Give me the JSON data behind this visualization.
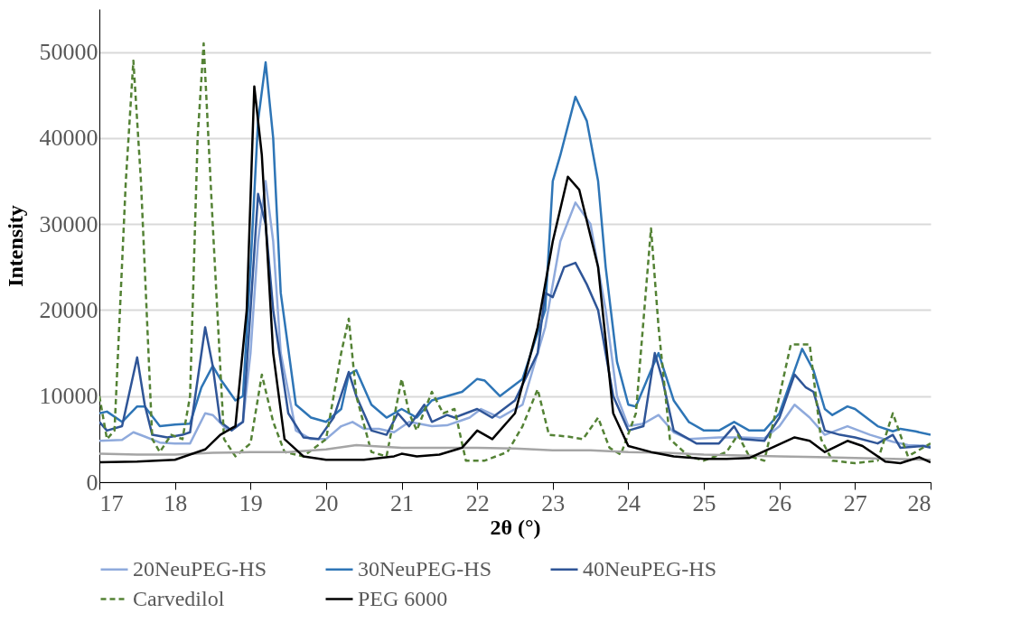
{
  "chart_data": {
    "type": "line",
    "xlabel": "2θ (°)",
    "ylabel": "Intensity",
    "xlim": [
      17,
      28
    ],
    "xticks": [
      17,
      18,
      19,
      20,
      21,
      22,
      23,
      24,
      25,
      26,
      27,
      28
    ],
    "ylim": [
      0,
      55000
    ],
    "yticks": [
      0,
      10000,
      20000,
      30000,
      40000,
      50000
    ],
    "grid": "y",
    "legend": "bottom",
    "marker": "none",
    "series": [
      {
        "name": "20NeuPEG-HS",
        "color": "#8faadc",
        "line_style": "solid",
        "x": [
          17,
          17.3,
          17.45,
          17.6,
          17.8,
          18,
          18.2,
          18.4,
          18.5,
          18.7,
          18.9,
          19.0,
          19.1,
          19.2,
          19.3,
          19.4,
          19.6,
          19.8,
          20,
          20.2,
          20.35,
          20.5,
          20.7,
          20.9,
          21.1,
          21.4,
          21.6,
          21.9,
          22.05,
          22.3,
          22.6,
          22.9,
          23.1,
          23.3,
          23.5,
          23.7,
          23.85,
          24,
          24.2,
          24.4,
          24.6,
          24.8,
          25.2,
          25.5,
          25.8,
          26,
          26.2,
          26.4,
          26.6,
          26.9,
          27.2,
          27.5,
          27.7,
          28
        ],
        "values": [
          4800,
          4900,
          5800,
          5300,
          4600,
          4500,
          4500,
          8000,
          7800,
          6000,
          7000,
          15000,
          28000,
          35000,
          28000,
          15000,
          6000,
          5000,
          5000,
          6500,
          7000,
          6200,
          6200,
          5800,
          7000,
          6500,
          6600,
          7500,
          8500,
          7500,
          9000,
          18000,
          28000,
          32500,
          30000,
          20000,
          10000,
          6500,
          6800,
          7800,
          5800,
          5000,
          5200,
          5200,
          5100,
          6500,
          9000,
          7500,
          5500,
          6500,
          5500,
          4700,
          4300,
          4200
        ]
      },
      {
        "name": "30NeuPEG-HS",
        "color": "#2e75b6",
        "line_style": "solid",
        "x": [
          17,
          17.1,
          17.3,
          17.5,
          17.6,
          17.8,
          18,
          18.2,
          18.35,
          18.5,
          18.6,
          18.8,
          18.9,
          19.0,
          19.1,
          19.2,
          19.3,
          19.4,
          19.6,
          19.8,
          20,
          20.2,
          20.3,
          20.4,
          20.6,
          20.8,
          21,
          21.2,
          21.4,
          21.6,
          21.8,
          22,
          22.1,
          22.3,
          22.6,
          22.9,
          23,
          23.1,
          23.3,
          23.45,
          23.6,
          23.7,
          23.85,
          24,
          24.1,
          24.3,
          24.4,
          24.6,
          24.8,
          25,
          25.2,
          25.4,
          25.6,
          25.8,
          26,
          26.2,
          26.3,
          26.45,
          26.6,
          26.7,
          26.9,
          27,
          27.3,
          27.5,
          27.6,
          27.8,
          28
        ],
        "values": [
          8000,
          8200,
          7000,
          8800,
          8800,
          6500,
          6700,
          6800,
          11000,
          13500,
          12000,
          9500,
          10000,
          25000,
          42000,
          48800,
          40000,
          22000,
          9000,
          7500,
          7000,
          8500,
          12500,
          13000,
          9000,
          7500,
          8500,
          7500,
          9500,
          10000,
          10500,
          12000,
          11800,
          10000,
          12000,
          20000,
          35000,
          38000,
          44800,
          42000,
          35000,
          25000,
          14000,
          9000,
          8800,
          13000,
          15000,
          9500,
          7000,
          6000,
          6000,
          7000,
          6000,
          6000,
          8000,
          13000,
          15500,
          13000,
          8500,
          7800,
          8800,
          8500,
          6500,
          5900,
          6200,
          5900,
          5500
        ]
      },
      {
        "name": "40NeuPEG-HS",
        "color": "#2f5597",
        "line_style": "solid",
        "x": [
          17,
          17.1,
          17.3,
          17.5,
          17.6,
          17.7,
          17.9,
          18.1,
          18.2,
          18.4,
          18.5,
          18.6,
          18.75,
          18.9,
          19.0,
          19.1,
          19.2,
          19.3,
          19.5,
          19.7,
          19.9,
          20.1,
          20.3,
          20.4,
          20.6,
          20.8,
          20.95,
          21.1,
          21.3,
          21.4,
          21.6,
          21.7,
          22,
          22.2,
          22.5,
          22.8,
          22.9,
          23.0,
          23.15,
          23.3,
          23.45,
          23.6,
          23.8,
          24,
          24.2,
          24.35,
          24.45,
          24.6,
          24.9,
          25.2,
          25.4,
          25.5,
          25.8,
          26.0,
          26.2,
          26.35,
          26.45,
          26.6,
          26.8,
          27,
          27.3,
          27.5,
          27.6,
          27.9,
          28
        ],
        "values": [
          7000,
          6000,
          6500,
          14500,
          9000,
          5500,
          5200,
          5500,
          5800,
          18000,
          13500,
          7000,
          6000,
          7000,
          20000,
          33500,
          30000,
          20000,
          8000,
          5200,
          5000,
          7500,
          12800,
          10000,
          6000,
          5500,
          8000,
          6500,
          9000,
          7000,
          7800,
          7500,
          8500,
          7500,
          9500,
          15000,
          22000,
          21500,
          25000,
          25500,
          23000,
          20000,
          10000,
          6000,
          6500,
          15000,
          12000,
          6000,
          4500,
          4500,
          6500,
          5000,
          4800,
          7500,
          12500,
          11000,
          10500,
          6000,
          5500,
          5200,
          4500,
          5500,
          4000,
          4200,
          4000
        ]
      },
      {
        "name": "Carvedilol",
        "color": "#548235",
        "line_style": "dashed",
        "x": [
          17,
          17.1,
          17.2,
          17.35,
          17.45,
          17.55,
          17.7,
          17.8,
          17.95,
          18.1,
          18.2,
          18.3,
          18.38,
          18.5,
          18.65,
          18.8,
          19.0,
          19.15,
          19.3,
          19.45,
          19.7,
          20.0,
          20.2,
          20.3,
          20.4,
          20.6,
          20.8,
          21.0,
          21.1,
          21.2,
          21.4,
          21.55,
          21.7,
          21.85,
          22.1,
          22.4,
          22.6,
          22.8,
          22.95,
          23.2,
          23.4,
          23.6,
          23.75,
          23.9,
          24.1,
          24.3,
          24.4,
          24.55,
          24.8,
          25,
          25.3,
          25.45,
          25.6,
          25.8,
          26,
          26.15,
          26.4,
          26.55,
          26.7,
          27,
          27.3,
          27.5,
          27.7,
          28
        ],
        "values": [
          10000,
          5000,
          6000,
          35000,
          49000,
          35000,
          5000,
          3500,
          5500,
          5000,
          10000,
          40000,
          51000,
          30000,
          5000,
          3000,
          4500,
          12500,
          7000,
          3500,
          3000,
          5000,
          15000,
          19000,
          10000,
          3500,
          3000,
          12000,
          8000,
          6000,
          10500,
          8000,
          8500,
          2500,
          2500,
          3500,
          6500,
          10800,
          5500,
          5300,
          5000,
          7500,
          4000,
          3200,
          8000,
          29500,
          18000,
          5000,
          3000,
          2500,
          3500,
          5500,
          3000,
          2500,
          10000,
          16000,
          16000,
          5000,
          2500,
          2200,
          2500,
          8000,
          3000,
          4500
        ]
      },
      {
        "name": null,
        "color": "#a5a5a5",
        "line_style": "solid",
        "x": [
          17,
          17.5,
          18,
          18.5,
          19,
          19.5,
          20,
          20.4,
          20.8,
          21,
          21.5,
          22,
          22.5,
          23,
          23.5,
          24,
          24.5,
          25,
          25.5,
          26,
          26.5,
          27,
          27.5,
          28
        ],
        "values": [
          3300,
          3200,
          3200,
          3400,
          3500,
          3500,
          3800,
          4300,
          4100,
          4000,
          4000,
          4000,
          3900,
          3700,
          3700,
          3500,
          3400,
          3200,
          3100,
          3000,
          2900,
          2800,
          2700,
          2600
        ]
      },
      {
        "name": "PEG 6000",
        "color": "#000000",
        "line_style": "solid",
        "x": [
          17,
          17.5,
          18,
          18.4,
          18.6,
          18.8,
          18.95,
          19.05,
          19.15,
          19.3,
          19.45,
          19.7,
          20,
          20.5,
          20.9,
          21,
          21.2,
          21.5,
          21.8,
          22,
          22.2,
          22.5,
          22.8,
          23,
          23.2,
          23.35,
          23.6,
          23.8,
          24,
          24.3,
          24.6,
          25,
          25.3,
          25.6,
          25.9,
          26.2,
          26.4,
          26.6,
          26.9,
          27.1,
          27.4,
          27.6,
          27.85,
          28
        ],
        "values": [
          2300,
          2400,
          2600,
          3800,
          5500,
          6500,
          20000,
          46000,
          38000,
          15000,
          5000,
          3000,
          2600,
          2600,
          3000,
          3300,
          3000,
          3200,
          4000,
          6000,
          5000,
          8000,
          18000,
          28000,
          35500,
          34000,
          25000,
          8000,
          4200,
          3500,
          3000,
          2700,
          2700,
          2800,
          4000,
          5200,
          4800,
          3500,
          4800,
          4200,
          2400,
          2200,
          2900,
          2300
        ]
      }
    ]
  }
}
